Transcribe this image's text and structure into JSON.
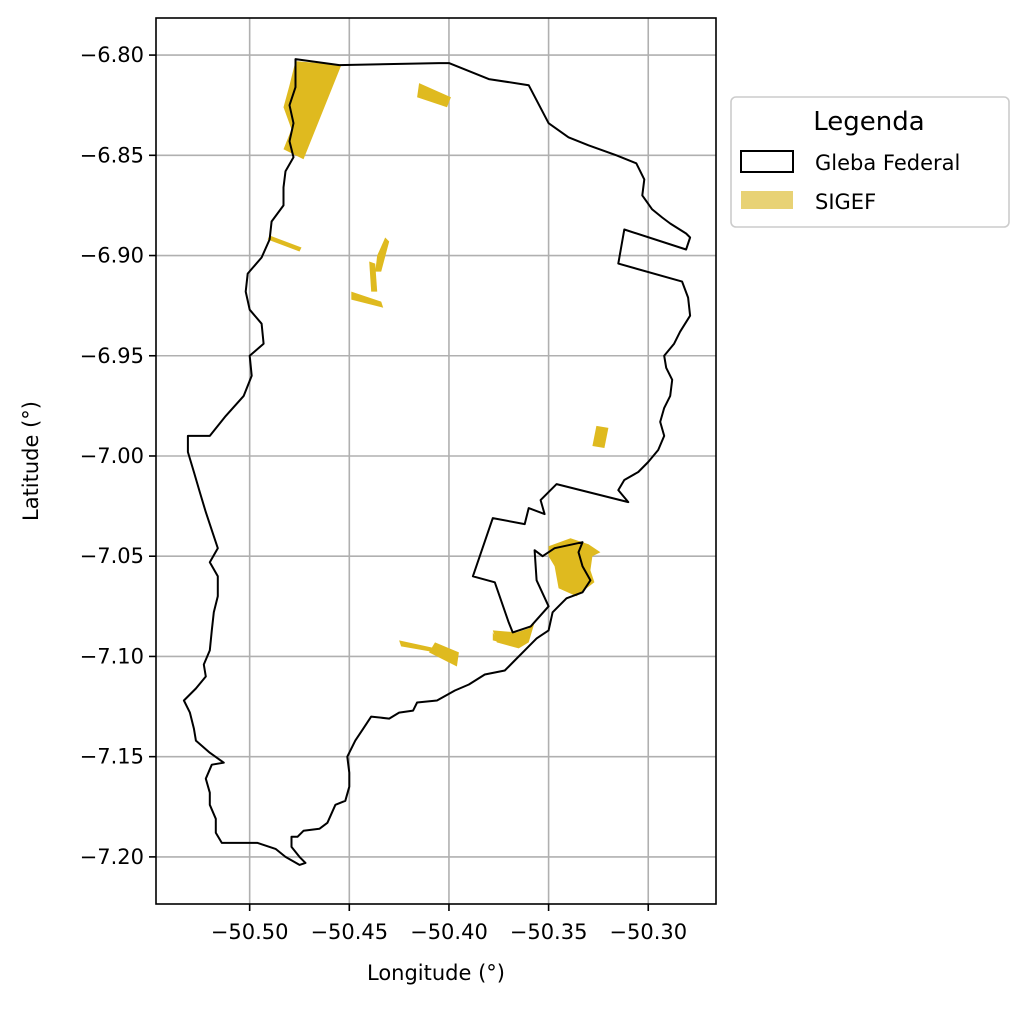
{
  "chart_data": {
    "type": "map",
    "xlabel": "Longitude (°)",
    "ylabel": "Latitude (°)",
    "xlim": [
      -50.547,
      -50.266
    ],
    "ylim": [
      -7.2235,
      -6.7815
    ],
    "x_ticks": [
      -50.5,
      -50.45,
      -50.4,
      -50.35,
      -50.3
    ],
    "x_tick_labels": [
      "−50.50",
      "−50.45",
      "−50.40",
      "−50.35",
      "−50.30"
    ],
    "y_ticks": [
      -6.8,
      -6.85,
      -6.9,
      -6.95,
      -7.0,
      -7.05,
      -7.1,
      -7.15,
      -7.2
    ],
    "y_tick_labels": [
      "−6.80",
      "−6.85",
      "−6.90",
      "−6.95",
      "−7.00",
      "−7.05",
      "−7.10",
      "−7.15",
      "−7.20"
    ],
    "grid": true,
    "legend": {
      "title": "Legenda",
      "placement": "outside-right-top",
      "items": [
        {
          "label": "Gleba Federal",
          "style": "outline",
          "color": "#000000"
        },
        {
          "label": "SIGEF",
          "style": "fill",
          "color": "#dfba1f"
        }
      ]
    },
    "layers": [
      {
        "name": "Gleba Federal",
        "fill": "none",
        "stroke": "#000000",
        "polygons": [
          [
            [
              -50.477,
              -6.802
            ],
            [
              -50.455,
              -6.805
            ],
            [
              -50.405,
              -6.804
            ],
            [
              -50.4,
              -6.804
            ],
            [
              -50.38,
              -6.812
            ],
            [
              -50.36,
              -6.815
            ],
            [
              -50.35,
              -6.834
            ],
            [
              -50.34,
              -6.841
            ],
            [
              -50.33,
              -6.845
            ],
            [
              -50.316,
              -6.85
            ],
            [
              -50.306,
              -6.854
            ],
            [
              -50.302,
              -6.862
            ],
            [
              -50.303,
              -6.87
            ],
            [
              -50.298,
              -6.877
            ],
            [
              -50.293,
              -6.881
            ],
            [
              -50.289,
              -6.884
            ],
            [
              -50.281,
              -6.889
            ],
            [
              -50.279,
              -6.891
            ],
            [
              -50.281,
              -6.897
            ],
            [
              -50.312,
              -6.887
            ],
            [
              -50.315,
              -6.904
            ],
            [
              -50.283,
              -6.913
            ],
            [
              -50.28,
              -6.921
            ],
            [
              -50.279,
              -6.93
            ],
            [
              -50.284,
              -6.938
            ],
            [
              -50.287,
              -6.944
            ],
            [
              -50.292,
              -6.95
            ],
            [
              -50.291,
              -6.956
            ],
            [
              -50.288,
              -6.962
            ],
            [
              -50.289,
              -6.97
            ],
            [
              -50.292,
              -6.976
            ],
            [
              -50.294,
              -6.983
            ],
            [
              -50.292,
              -6.99
            ],
            [
              -50.295,
              -6.997
            ],
            [
              -50.3,
              -7.003
            ],
            [
              -50.305,
              -7.008
            ],
            [
              -50.312,
              -7.012
            ],
            [
              -50.315,
              -7.017
            ],
            [
              -50.31,
              -7.023
            ],
            [
              -50.346,
              -7.014
            ],
            [
              -50.354,
              -7.022
            ],
            [
              -50.352,
              -7.029
            ],
            [
              -50.36,
              -7.026
            ],
            [
              -50.362,
              -7.034
            ],
            [
              -50.378,
              -7.031
            ],
            [
              -50.388,
              -7.06
            ],
            [
              -50.377,
              -7.063
            ],
            [
              -50.37,
              -7.083
            ],
            [
              -50.368,
              -7.088
            ],
            [
              -50.359,
              -7.085
            ],
            [
              -50.35,
              -7.075
            ],
            [
              -50.356,
              -7.062
            ],
            [
              -50.357,
              -7.047
            ],
            [
              -50.353,
              -7.05
            ],
            [
              -50.347,
              -7.046
            ],
            [
              -50.333,
              -7.043
            ],
            [
              -50.335,
              -7.048
            ],
            [
              -50.333,
              -7.055
            ],
            [
              -50.329,
              -7.062
            ],
            [
              -50.333,
              -7.068
            ],
            [
              -50.341,
              -7.071
            ],
            [
              -50.348,
              -7.078
            ],
            [
              -50.35,
              -7.087
            ],
            [
              -50.356,
              -7.091
            ],
            [
              -50.362,
              -7.097
            ],
            [
              -50.367,
              -7.102
            ],
            [
              -50.372,
              -7.107
            ],
            [
              -50.382,
              -7.109
            ],
            [
              -50.39,
              -7.114
            ],
            [
              -50.397,
              -7.117
            ],
            [
              -50.406,
              -7.122
            ],
            [
              -50.416,
              -7.123
            ],
            [
              -50.418,
              -7.127
            ],
            [
              -50.425,
              -7.128
            ],
            [
              -50.43,
              -7.131
            ],
            [
              -50.439,
              -7.13
            ],
            [
              -50.443,
              -7.136
            ],
            [
              -50.447,
              -7.142
            ],
            [
              -50.451,
              -7.15
            ],
            [
              -50.45,
              -7.158
            ],
            [
              -50.45,
              -7.165
            ],
            [
              -50.452,
              -7.172
            ],
            [
              -50.457,
              -7.174
            ],
            [
              -50.461,
              -7.183
            ],
            [
              -50.465,
              -7.186
            ],
            [
              -50.473,
              -7.187
            ],
            [
              -50.476,
              -7.19
            ],
            [
              -50.479,
              -7.19
            ],
            [
              -50.479,
              -7.195
            ],
            [
              -50.475,
              -7.2
            ],
            [
              -50.472,
              -7.203
            ],
            [
              -50.475,
              -7.204
            ],
            [
              -50.482,
              -7.2
            ],
            [
              -50.487,
              -7.196
            ],
            [
              -50.496,
              -7.193
            ],
            [
              -50.503,
              -7.193
            ],
            [
              -50.508,
              -7.193
            ],
            [
              -50.514,
              -7.193
            ],
            [
              -50.517,
              -7.188
            ],
            [
              -50.517,
              -7.181
            ],
            [
              -50.52,
              -7.174
            ],
            [
              -50.52,
              -7.168
            ],
            [
              -50.522,
              -7.161
            ],
            [
              -50.519,
              -7.154
            ],
            [
              -50.513,
              -7.153
            ],
            [
              -50.52,
              -7.148
            ],
            [
              -50.527,
              -7.142
            ],
            [
              -50.528,
              -7.136
            ],
            [
              -50.53,
              -7.128
            ],
            [
              -50.533,
              -7.122
            ],
            [
              -50.527,
              -7.116
            ],
            [
              -50.522,
              -7.11
            ],
            [
              -50.523,
              -7.104
            ],
            [
              -50.52,
              -7.097
            ],
            [
              -50.519,
              -7.087
            ],
            [
              -50.518,
              -7.078
            ],
            [
              -50.516,
              -7.07
            ],
            [
              -50.516,
              -7.06
            ],
            [
              -50.52,
              -7.053
            ],
            [
              -50.516,
              -7.046
            ],
            [
              -50.519,
              -7.037
            ],
            [
              -50.522,
              -7.028
            ],
            [
              -50.525,
              -7.018
            ],
            [
              -50.528,
              -7.008
            ],
            [
              -50.531,
              -6.998
            ],
            [
              -50.531,
              -6.99
            ],
            [
              -50.52,
              -6.99
            ],
            [
              -50.512,
              -6.98
            ],
            [
              -50.503,
              -6.97
            ],
            [
              -50.499,
              -6.96
            ],
            [
              -50.5,
              -6.95
            ],
            [
              -50.493,
              -6.944
            ],
            [
              -50.494,
              -6.934
            ],
            [
              -50.5,
              -6.927
            ],
            [
              -50.502,
              -6.918
            ],
            [
              -50.501,
              -6.909
            ],
            [
              -50.494,
              -6.901
            ],
            [
              -50.49,
              -6.892
            ],
            [
              -50.489,
              -6.883
            ],
            [
              -50.483,
              -6.875
            ],
            [
              -50.483,
              -6.866
            ],
            [
              -50.482,
              -6.858
            ],
            [
              -50.478,
              -6.851
            ],
            [
              -50.48,
              -6.843
            ],
            [
              -50.478,
              -6.834
            ],
            [
              -50.48,
              -6.825
            ],
            [
              -50.477,
              -6.816
            ],
            [
              -50.477,
              -6.808
            ],
            [
              -50.477,
              -6.802
            ]
          ]
        ]
      },
      {
        "name": "SIGEF",
        "fill": "#dfba1f",
        "stroke": "none",
        "polygons": [
          [
            [
              -50.477,
              -6.803
            ],
            [
              -50.454,
              -6.805
            ],
            [
              -50.473,
              -6.852
            ],
            [
              -50.483,
              -6.847
            ],
            [
              -50.479,
              -6.837
            ],
            [
              -50.483,
              -6.826
            ],
            [
              -50.48,
              -6.815
            ]
          ],
          [
            [
              -50.415,
              -6.814
            ],
            [
              -50.399,
              -6.821
            ],
            [
              -50.401,
              -6.826
            ],
            [
              -50.416,
              -6.821
            ]
          ],
          [
            [
              -50.49,
              -6.89
            ],
            [
              -50.474,
              -6.896
            ],
            [
              -50.475,
              -6.898
            ],
            [
              -50.491,
              -6.892
            ]
          ],
          [
            [
              -50.432,
              -6.891
            ],
            [
              -50.436,
              -6.9
            ],
            [
              -50.437,
              -6.908
            ],
            [
              -50.434,
              -6.908
            ],
            [
              -50.43,
              -6.893
            ]
          ],
          [
            [
              -50.44,
              -6.903
            ],
            [
              -50.437,
              -6.904
            ],
            [
              -50.436,
              -6.918
            ],
            [
              -50.439,
              -6.918
            ]
          ],
          [
            [
              -50.449,
              -6.918
            ],
            [
              -50.434,
              -6.923
            ],
            [
              -50.433,
              -6.926
            ],
            [
              -50.449,
              -6.922
            ]
          ],
          [
            [
              -50.326,
              -6.985
            ],
            [
              -50.32,
              -6.986
            ],
            [
              -50.322,
              -6.996
            ],
            [
              -50.328,
              -6.995
            ]
          ],
          [
            [
              -50.35,
              -7.045
            ],
            [
              -50.339,
              -7.041
            ],
            [
              -50.33,
              -7.044
            ],
            [
              -50.324,
              -7.048
            ],
            [
              -50.328,
              -7.05
            ],
            [
              -50.329,
              -7.057
            ],
            [
              -50.327,
              -7.063
            ],
            [
              -50.331,
              -7.066
            ],
            [
              -50.336,
              -7.07
            ],
            [
              -50.345,
              -7.066
            ],
            [
              -50.347,
              -7.055
            ],
            [
              -50.35,
              -7.05
            ]
          ],
          [
            [
              -50.378,
              -7.088
            ],
            [
              -50.375,
              -7.093
            ],
            [
              -50.366,
              -7.095
            ],
            [
              -50.378,
              -7.092
            ]
          ],
          [
            [
              -50.378,
              -7.087
            ],
            [
              -50.376,
              -7.093
            ],
            [
              -50.365,
              -7.096
            ],
            [
              -50.36,
              -7.093
            ],
            [
              -50.357,
              -7.083
            ],
            [
              -50.36,
              -7.086
            ],
            [
              -50.366,
              -7.088
            ]
          ],
          [
            [
              -50.425,
              -7.092
            ],
            [
              -50.402,
              -7.097
            ],
            [
              -50.401,
              -7.099
            ],
            [
              -50.424,
              -7.095
            ]
          ],
          [
            [
              -50.407,
              -7.093
            ],
            [
              -50.395,
              -7.098
            ],
            [
              -50.396,
              -7.105
            ],
            [
              -50.41,
              -7.098
            ]
          ]
        ]
      }
    ]
  }
}
